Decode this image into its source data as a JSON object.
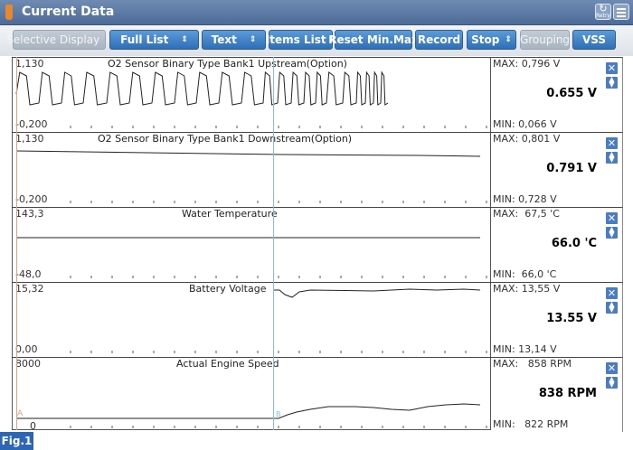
{
  "window": {
    "title": "Current Data",
    "retry_label": "Retry"
  },
  "toolbar": {
    "buttons": [
      {
        "label": "Selective Display",
        "arrow": "⇕",
        "enabled": false
      },
      {
        "label": "Full List",
        "arrow": "⇕",
        "enabled": true
      },
      {
        "label": "Text",
        "arrow": "⇕",
        "enabled": true
      },
      {
        "label": "Items List",
        "arrow": "⇕",
        "enabled": true
      },
      {
        "label": "Reset Min.Max",
        "arrow": "",
        "enabled": true
      },
      {
        "label": "Record",
        "arrow": "",
        "enabled": true
      },
      {
        "label": "Stop",
        "arrow": "⇕",
        "enabled": true
      },
      {
        "label": "Grouping",
        "arrow": "",
        "enabled": false
      },
      {
        "label": "VSS",
        "arrow": "",
        "enabled": true
      }
    ]
  },
  "graphs": [
    {
      "title": "O2 Sensor Binary Type Bank1 Upstream(Option)",
      "axis_max": "1,130",
      "axis_min": "-0,200",
      "max_label": "MAX: 0,796 V",
      "current": "0.655 V",
      "min_label": "MIN: 0,066 V"
    },
    {
      "title": "O2 Sensor Binary Type Bank1 Downstream(Option)",
      "axis_max": "1,130",
      "axis_min": "-0,200",
      "max_label": "MAX: 0,801 V",
      "current": "0.791 V",
      "min_label": "MIN: 0,728 V"
    },
    {
      "title": "Water Temperature",
      "axis_max": "143,3",
      "axis_min": "-48,0",
      "max_label": "MAX:  67,5 'C",
      "current": "66.0 'C",
      "min_label": "MIN:  66,0 'C"
    },
    {
      "title": "Battery Voltage",
      "axis_max": "15,32",
      "axis_min": "0,00",
      "max_label": "MAX: 13,55 V",
      "current": "13.55 V",
      "min_label": "MIN: 13,14 V"
    },
    {
      "title": "Actual Engine Speed",
      "axis_max": "8000",
      "axis_min": "0",
      "max_label": "MAX:   858 RPM",
      "current": "838 RPM",
      "min_label": "MIN:   822 RPM"
    }
  ],
  "colors": {
    "accent": "#2f6fb6",
    "trace": "#222222",
    "cursor": "#7fc3df",
    "marker": "#e0a083"
  },
  "figure_label": "Fig.1"
}
